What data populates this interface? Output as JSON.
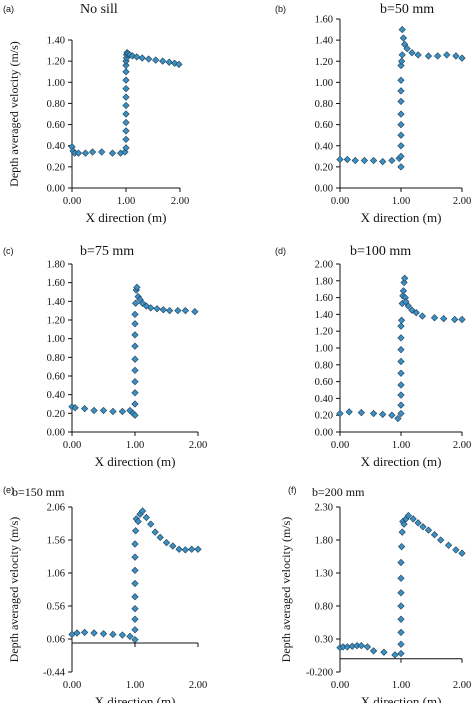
{
  "chart_data": [
    {
      "type": "scatter",
      "panel_label": "(a)",
      "title": "No sill",
      "xlabel": "X direction (m)",
      "ylabel": "Depth averaged velocity (m/s)",
      "xlim": [
        0,
        2
      ],
      "ylim": [
        0,
        1.4
      ],
      "xticks": [
        "0.00",
        "1.00",
        "2.00"
      ],
      "yticks": [
        "0.00",
        "0.20",
        "0.40",
        "0.60",
        "0.80",
        "1.00",
        "1.20",
        "1.40"
      ],
      "marker_color": "#3d8fc1",
      "x": [
        0.0,
        0.02,
        0.05,
        0.12,
        0.25,
        0.38,
        0.55,
        0.75,
        0.9,
        0.98,
        1.0,
        1.0,
        1.0,
        1.0,
        1.0,
        1.0,
        1.0,
        1.0,
        1.0,
        1.0,
        1.0,
        1.0,
        1.01,
        1.01,
        1.02,
        1.04,
        1.07,
        1.12,
        1.2,
        1.3,
        1.42,
        1.55,
        1.68,
        1.8,
        1.9,
        1.98
      ],
      "y": [
        0.39,
        0.35,
        0.33,
        0.33,
        0.33,
        0.34,
        0.34,
        0.33,
        0.33,
        0.34,
        0.38,
        0.46,
        0.54,
        0.62,
        0.7,
        0.78,
        0.86,
        0.94,
        1.02,
        1.1,
        1.16,
        1.2,
        1.23,
        1.26,
        1.28,
        1.27,
        1.26,
        1.25,
        1.24,
        1.23,
        1.22,
        1.21,
        1.2,
        1.19,
        1.18,
        1.17
      ]
    },
    {
      "type": "scatter",
      "panel_label": "(b)",
      "title": "b=50 mm",
      "xlabel": "X direction (m)",
      "ylabel": "",
      "xlim": [
        0,
        2
      ],
      "ylim": [
        0,
        1.6
      ],
      "xticks": [
        "0.00",
        "1.00",
        "2.00"
      ],
      "yticks": [
        "0.00",
        "0.20",
        "0.40",
        "0.60",
        "0.80",
        "1.00",
        "1.20",
        "1.40",
        "1.60"
      ],
      "marker_color": "#3d8fc1",
      "x": [
        0.0,
        0.12,
        0.25,
        0.4,
        0.55,
        0.7,
        0.85,
        0.97,
        1.0,
        1.0,
        1.0,
        1.0,
        1.0,
        1.0,
        1.0,
        1.0,
        1.0,
        1.0,
        1.01,
        1.02,
        1.02,
        1.04,
        1.06,
        1.1,
        1.18,
        1.28,
        1.45,
        1.6,
        1.75,
        1.9,
        2.0
      ],
      "y": [
        0.27,
        0.27,
        0.26,
        0.26,
        0.26,
        0.25,
        0.26,
        0.28,
        0.2,
        0.3,
        0.4,
        0.5,
        0.6,
        0.7,
        0.82,
        0.92,
        1.02,
        1.16,
        1.2,
        1.26,
        1.5,
        1.42,
        1.36,
        1.32,
        1.28,
        1.26,
        1.25,
        1.25,
        1.26,
        1.25,
        1.23
      ]
    },
    {
      "type": "scatter",
      "panel_label": "(c)",
      "title": "b=75 mm",
      "xlabel": "X direction (m)",
      "ylabel": "",
      "xlim": [
        0,
        2
      ],
      "ylim": [
        0,
        1.8
      ],
      "xticks": [
        "0.00",
        "1.00",
        "2.00"
      ],
      "yticks": [
        "0.00",
        "0.20",
        "0.40",
        "0.60",
        "0.80",
        "1.00",
        "1.20",
        "1.40",
        "1.60",
        "1.80"
      ],
      "marker_color": "#3d8fc1",
      "x": [
        0.0,
        0.05,
        0.2,
        0.35,
        0.5,
        0.65,
        0.8,
        0.92,
        0.97,
        1.0,
        1.0,
        1.0,
        1.0,
        1.0,
        1.0,
        1.0,
        1.0,
        1.0,
        1.0,
        1.01,
        1.02,
        1.03,
        1.05,
        1.08,
        1.12,
        1.18,
        1.25,
        1.35,
        1.45,
        1.55,
        1.68,
        1.8,
        1.95
      ],
      "y": [
        0.27,
        0.26,
        0.25,
        0.23,
        0.23,
        0.22,
        0.22,
        0.23,
        0.2,
        0.18,
        0.3,
        0.42,
        0.54,
        0.66,
        0.78,
        0.92,
        1.04,
        1.16,
        1.26,
        1.38,
        1.52,
        1.55,
        1.45,
        1.42,
        1.38,
        1.35,
        1.33,
        1.32,
        1.31,
        1.3,
        1.3,
        1.3,
        1.29
      ]
    },
    {
      "type": "scatter",
      "panel_label": "(d)",
      "title": "b=100 mm",
      "xlabel": "X direction (m)",
      "ylabel": "",
      "xlim": [
        0,
        2
      ],
      "ylim": [
        0,
        2
      ],
      "xticks": [
        "0.00",
        "1.00",
        "2.00"
      ],
      "yticks": [
        "0.00",
        "0.20",
        "0.40",
        "0.60",
        "0.80",
        "1.00",
        "1.20",
        "1.40",
        "1.60",
        "1.80",
        "2.00"
      ],
      "marker_color": "#3d8fc1",
      "x": [
        0.0,
        0.15,
        0.35,
        0.55,
        0.7,
        0.85,
        0.95,
        1.0,
        1.0,
        1.0,
        1.0,
        1.0,
        1.0,
        1.0,
        1.0,
        1.0,
        1.01,
        1.02,
        1.03,
        1.04,
        1.05,
        1.06,
        1.07,
        1.08,
        1.12,
        1.18,
        1.25,
        1.35,
        1.55,
        1.7,
        1.88,
        2.0
      ],
      "y": [
        0.22,
        0.24,
        0.23,
        0.22,
        0.21,
        0.2,
        0.16,
        0.22,
        0.32,
        0.44,
        0.56,
        0.7,
        0.84,
        0.98,
        1.12,
        1.26,
        1.33,
        1.53,
        1.62,
        1.68,
        1.78,
        1.83,
        1.6,
        1.55,
        1.5,
        1.45,
        1.42,
        1.38,
        1.36,
        1.35,
        1.34,
        1.34
      ]
    },
    {
      "type": "scatter",
      "panel_label": "(e)",
      "title": "b=150 mm",
      "xlabel": "X direction (m)",
      "ylabel": "Depth averaged velocity (m/s)",
      "xlim": [
        0,
        2
      ],
      "ylim": [
        -0.44,
        2.06
      ],
      "xticks": [
        "0.00",
        "1.00",
        "2.00"
      ],
      "yticks": [
        "-0.44",
        "0.06",
        "0.56",
        "1.06",
        "1.56",
        "2.06"
      ],
      "marker_color": "#3d8fc1",
      "x": [
        0.0,
        0.08,
        0.2,
        0.35,
        0.5,
        0.65,
        0.8,
        0.92,
        1.0,
        1.0,
        1.0,
        1.0,
        1.0,
        1.0,
        1.0,
        1.0,
        1.0,
        1.01,
        1.02,
        1.05,
        1.08,
        1.12,
        1.18,
        1.25,
        1.32,
        1.4,
        1.5,
        1.6,
        1.7,
        1.8,
        1.9,
        2.0
      ],
      "y": [
        0.13,
        0.15,
        0.16,
        0.15,
        0.14,
        0.13,
        0.12,
        0.1,
        0.05,
        0.2,
        0.36,
        0.52,
        0.7,
        0.9,
        1.1,
        1.3,
        1.5,
        1.7,
        1.88,
        1.84,
        1.95,
        2.0,
        1.9,
        1.8,
        1.68,
        1.6,
        1.52,
        1.47,
        1.42,
        1.41,
        1.42,
        1.42
      ]
    },
    {
      "type": "scatter",
      "panel_label": "(f)",
      "title": "b=200 mm",
      "xlabel": "X direction (m)",
      "ylabel": "Depth averaged velocity (m/s)",
      "xlim": [
        0,
        2
      ],
      "ylim": [
        -0.2,
        2.3
      ],
      "xticks": [
        "0.00",
        "1.00",
        "2.00"
      ],
      "yticks": [
        "-0.200",
        "0.30",
        "0.80",
        "1.30",
        "1.80",
        "2.30"
      ],
      "marker_color": "#3d8fc1",
      "x": [
        0.0,
        0.05,
        0.12,
        0.2,
        0.28,
        0.35,
        0.45,
        0.55,
        0.72,
        0.9,
        1.0,
        1.0,
        1.0,
        1.0,
        1.0,
        1.0,
        1.0,
        1.0,
        1.01,
        1.02,
        1.03,
        1.05,
        1.08,
        1.12,
        1.2,
        1.28,
        1.36,
        1.45,
        1.55,
        1.65,
        1.78,
        1.9,
        2.0
      ],
      "y": [
        0.17,
        0.18,
        0.18,
        0.19,
        0.2,
        0.2,
        0.18,
        0.12,
        0.1,
        0.06,
        0.08,
        0.22,
        0.4,
        0.6,
        0.8,
        1.0,
        1.22,
        1.46,
        1.7,
        1.92,
        2.08,
        2.04,
        2.12,
        2.17,
        2.12,
        2.06,
        2.0,
        1.95,
        1.88,
        1.8,
        1.72,
        1.65,
        1.6
      ]
    }
  ]
}
